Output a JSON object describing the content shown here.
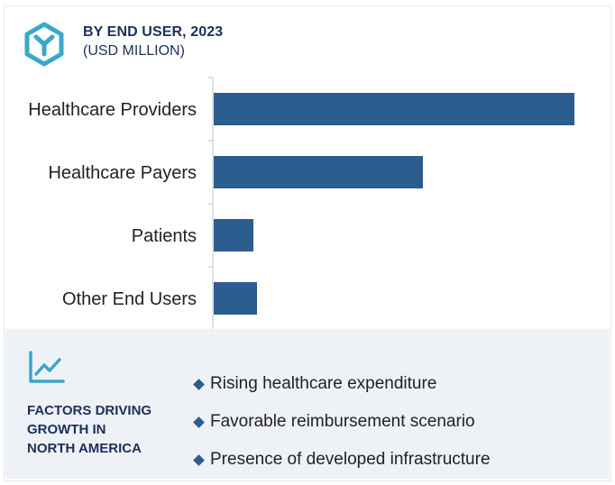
{
  "header": {
    "title": "BY END USER, 2023",
    "subtitle": "(USD MILLION)",
    "icon": "hexagon-y-logo-icon"
  },
  "colors": {
    "bar": "#2c5d8f",
    "accent": "#3aa8c9",
    "title": "#1d2f5a",
    "panel_bg": "#eef1f6"
  },
  "chart_data": {
    "type": "bar",
    "orientation": "horizontal",
    "title": "BY END USER, 2023",
    "subtitle": "(USD MILLION)",
    "categories": [
      "Healthcare Providers",
      "Healthcare Payers",
      "Patients",
      "Other End Users"
    ],
    "values": [
      100,
      58,
      11,
      12
    ],
    "value_axis_visible": false,
    "grid": false,
    "legend": "none"
  },
  "factors": {
    "icon": "line-chart-icon",
    "title_lines": [
      "FACTORS DRIVING",
      "GROWTH IN",
      "NORTH AMERICA"
    ],
    "items": [
      "Rising healthcare expenditure",
      "Favorable reimbursement scenario",
      "Presence of developed infrastructure"
    ]
  }
}
